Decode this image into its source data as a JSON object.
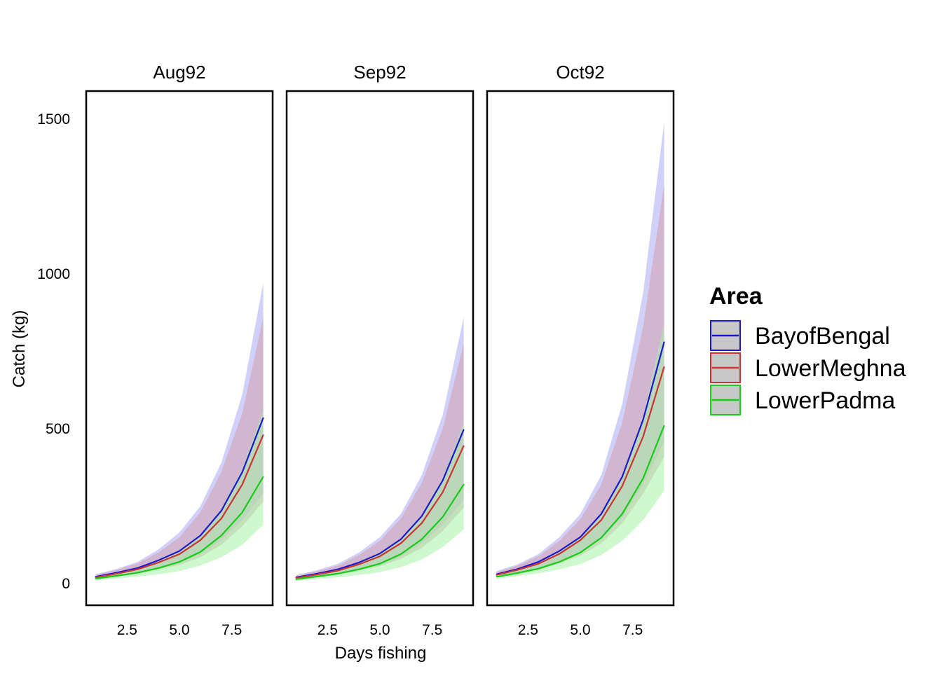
{
  "chart_data": {
    "type": "line",
    "xlabel": "Days fishing",
    "ylabel": "Catch (kg)",
    "xlim": [
      0.55,
      9.45
    ],
    "ylim": [
      -70,
      1590
    ],
    "x_ticks": [
      2.5,
      5.0,
      7.5
    ],
    "x_tick_labels": [
      "2.5",
      "5.0",
      "7.5"
    ],
    "y_ticks": [
      0,
      500,
      1000,
      1500
    ],
    "y_tick_labels": [
      "0",
      "500",
      "1000",
      "1500"
    ],
    "grid": false,
    "legend": {
      "title": "Area",
      "position": "right",
      "entries": [
        "BayofBengal",
        "LowerMeghna",
        "LowerPadma"
      ]
    },
    "colors": {
      "BayofBengal": "#1a1acc",
      "LowerMeghna": "#cc3333",
      "LowerPadma": "#17cc17",
      "BayofBengal_band": "#aaaaf2",
      "LowerMeghna_band": "#d4a0ae",
      "LowerPadma_band": "#a6f2a6"
    },
    "x": [
      1,
      2,
      3,
      4,
      5,
      6,
      7,
      8,
      9
    ],
    "panels": [
      {
        "name": "Aug92",
        "series": [
          {
            "name": "BayofBengal",
            "values": [
              22,
              35,
              50,
              75,
              105,
              155,
              235,
              360,
              535
            ],
            "lower": [
              15,
              25,
              36,
              52,
              68,
              95,
              140,
              205,
              290
            ],
            "upper": [
              30,
              47,
              70,
              110,
              165,
              250,
              390,
              610,
              970
            ]
          },
          {
            "name": "LowerMeghna",
            "values": [
              20,
              32,
              46,
              68,
              95,
              140,
              210,
              320,
              480
            ],
            "lower": [
              14,
              22,
              32,
              46,
              60,
              85,
              125,
              185,
              265
            ],
            "upper": [
              28,
              44,
              65,
              100,
              150,
              230,
              360,
              550,
              860
            ]
          },
          {
            "name": "LowerPadma",
            "values": [
              16,
              25,
              35,
              50,
              70,
              102,
              155,
              230,
              345
            ],
            "lower": [
              10,
              16,
              22,
              30,
              40,
              58,
              85,
              125,
              190
            ],
            "upper": [
              22,
              36,
              52,
              76,
              106,
              155,
              240,
              370,
              560
            ]
          }
        ]
      },
      {
        "name": "Sep92",
        "series": [
          {
            "name": "BayofBengal",
            "values": [
              20,
              32,
              46,
              68,
              97,
              143,
              218,
              333,
              497
            ],
            "lower": [
              14,
              23,
              33,
              48,
              63,
              88,
              130,
              190,
              270
            ],
            "upper": [
              27,
              43,
              64,
              100,
              150,
              225,
              350,
              545,
              860
            ]
          },
          {
            "name": "LowerMeghna",
            "values": [
              18,
              29,
              42,
              62,
              88,
              130,
              195,
              295,
              445
            ],
            "lower": [
              13,
              20,
              30,
              42,
              56,
              80,
              115,
              170,
              245
            ],
            "upper": [
              25,
              40,
              58,
              92,
              138,
              210,
              325,
              500,
              775
            ]
          },
          {
            "name": "LowerPadma",
            "values": [
              14,
              23,
              32,
              46,
              64,
              95,
              143,
              215,
              320
            ],
            "lower": [
              9,
              15,
              20,
              28,
              37,
              53,
              78,
              118,
              175
            ],
            "upper": [
              20,
              32,
              47,
              70,
              98,
              145,
              222,
              340,
              520
            ]
          }
        ]
      },
      {
        "name": "Oct92",
        "series": [
          {
            "name": "BayofBengal",
            "values": [
              30,
              47,
              70,
              105,
              150,
              225,
              345,
              530,
              780
            ],
            "lower": [
              22,
              34,
              50,
              72,
              98,
              145,
              215,
              320,
              460
            ],
            "upper": [
              40,
              62,
              95,
              150,
              225,
              350,
              580,
              940,
              1490
            ]
          },
          {
            "name": "LowerMeghna",
            "values": [
              28,
              44,
              64,
              96,
              140,
              205,
              315,
              475,
              700
            ],
            "lower": [
              20,
              31,
              46,
              66,
              90,
              130,
              195,
              290,
              410
            ],
            "upper": [
              37,
              58,
              88,
              138,
              208,
              320,
              520,
              830,
              1290
            ]
          },
          {
            "name": "LowerPadma",
            "values": [
              22,
              34,
              48,
              70,
              100,
              148,
              225,
              340,
              510
            ],
            "lower": [
              15,
              24,
              33,
              46,
              63,
              92,
              138,
              205,
              300
            ],
            "upper": [
              30,
              46,
              68,
              102,
              148,
              220,
              345,
              540,
              840
            ]
          }
        ]
      }
    ]
  }
}
